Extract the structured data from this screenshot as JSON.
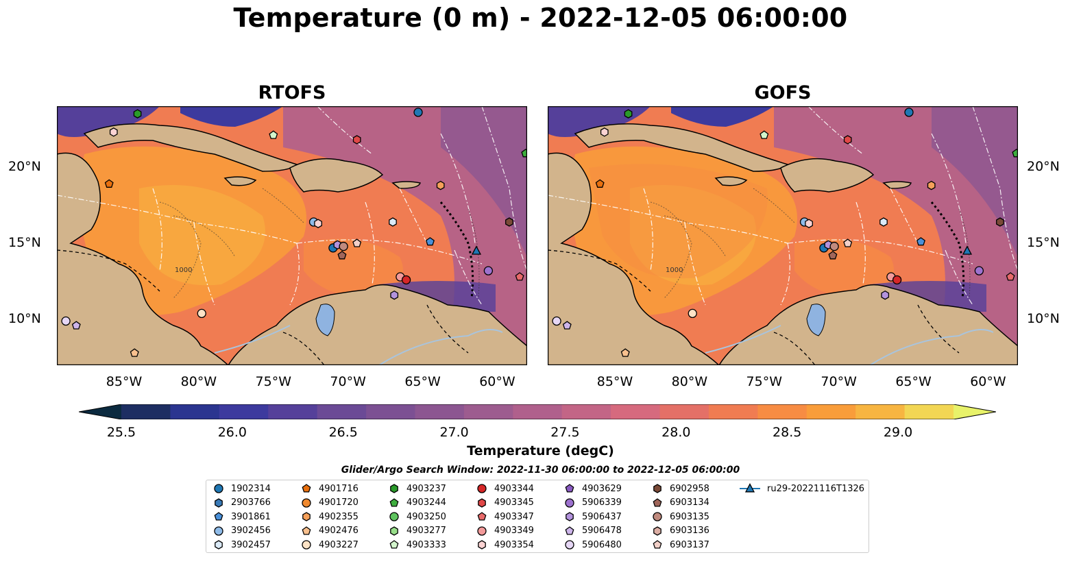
{
  "title": "Temperature (0 m) - 2022-12-05 06:00:00",
  "panels": [
    {
      "title": "RTOFS"
    },
    {
      "title": "GOFS"
    }
  ],
  "axes": {
    "xticks": [
      "85°W",
      "80°W",
      "75°W",
      "70°W",
      "65°W",
      "60°W"
    ],
    "yticks": [
      "20°N",
      "15°N",
      "10°N"
    ],
    "lon_range": [
      -89.5,
      -58
    ],
    "lat_range": [
      7,
      24
    ],
    "xtick_values": [
      -85,
      -80,
      -75,
      -70,
      -65,
      -60
    ],
    "ytick_values": [
      20,
      15,
      10
    ]
  },
  "colorbar": {
    "label": "Temperature (degC)",
    "ticks": [
      "25.5",
      "26.0",
      "26.5",
      "27.0",
      "27.5",
      "28.0",
      "28.5",
      "29.0"
    ],
    "tick_values": [
      25.5,
      26.0,
      26.5,
      27.0,
      27.5,
      28.0,
      28.5,
      29.0
    ],
    "range": [
      25.5,
      29.25
    ],
    "step": 0.25,
    "colors": [
      "#0b2a3f",
      "#1d2e62",
      "#2b3590",
      "#3d3a9e",
      "#55409a",
      "#6b4a96",
      "#7c5093",
      "#8c5691",
      "#9d5c8f",
      "#b0608c",
      "#c36586",
      "#d66a7e",
      "#e47067",
      "#f07c52",
      "#f78c43",
      "#f99d3a",
      "#f7b541",
      "#f2d654",
      "#e8f26a"
    ]
  },
  "contour_labels": [
    "1000"
  ],
  "legend": {
    "title": "Glider/Argo Search Window: 2022-11-30 06:00:00 to 2022-12-05 06:00:00",
    "entries": [
      {
        "label": "1902314",
        "marker": "circle",
        "color": "#1f77b4"
      },
      {
        "label": "2903766",
        "marker": "hexagon",
        "color": "#3a7bb8"
      },
      {
        "label": "3901861",
        "marker": "pentagon",
        "color": "#4a90d9"
      },
      {
        "label": "3902456",
        "marker": "circle",
        "color": "#8fbbe8"
      },
      {
        "label": "3902457",
        "marker": "hexagon",
        "color": "#dbeaf7"
      },
      {
        "label": "4901716",
        "marker": "pentagon",
        "color": "#e8700f"
      },
      {
        "label": "4901720",
        "marker": "circle",
        "color": "#f0892e"
      },
      {
        "label": "4902355",
        "marker": "hexagon",
        "color": "#f5a05a"
      },
      {
        "label": "4902476",
        "marker": "pentagon",
        "color": "#f8c08e"
      },
      {
        "label": "4903227",
        "marker": "circle",
        "color": "#fde3c6"
      },
      {
        "label": "4903237",
        "marker": "hexagon",
        "color": "#2a9a2a"
      },
      {
        "label": "4903244",
        "marker": "pentagon",
        "color": "#3fae3f"
      },
      {
        "label": "4903250",
        "marker": "circle",
        "color": "#5fc45f"
      },
      {
        "label": "4903277",
        "marker": "hexagon",
        "color": "#98df8a"
      },
      {
        "label": "4903333",
        "marker": "pentagon",
        "color": "#d3f5cc"
      },
      {
        "label": "4903344",
        "marker": "circle",
        "color": "#d62728"
      },
      {
        "label": "4903345",
        "marker": "hexagon",
        "color": "#e04848"
      },
      {
        "label": "4903347",
        "marker": "pentagon",
        "color": "#e86a6a"
      },
      {
        "label": "4903349",
        "marker": "circle",
        "color": "#f29a9a"
      },
      {
        "label": "4903354",
        "marker": "hexagon",
        "color": "#fbd3d3"
      },
      {
        "label": "4903629",
        "marker": "pentagon",
        "color": "#8a5bc2"
      },
      {
        "label": "5906339",
        "marker": "circle",
        "color": "#9d72cf"
      },
      {
        "label": "5906437",
        "marker": "hexagon",
        "color": "#b393dd"
      },
      {
        "label": "5906478",
        "marker": "pentagon",
        "color": "#cdb5ea"
      },
      {
        "label": "5906480",
        "marker": "circle",
        "color": "#e6d7f5"
      },
      {
        "label": "6902958",
        "marker": "hexagon",
        "color": "#7a4a38"
      },
      {
        "label": "6903134",
        "marker": "pentagon",
        "color": "#a0665a"
      },
      {
        "label": "6903135",
        "marker": "circle",
        "color": "#c08a7e"
      },
      {
        "label": "6903136",
        "marker": "hexagon",
        "color": "#dcaea4"
      },
      {
        "label": "6903137",
        "marker": "pentagon",
        "color": "#f2d0c8"
      },
      {
        "label": "ru29-20221116T1326",
        "marker": "triangle-line",
        "color": "#1f77b4"
      }
    ]
  },
  "floats": [
    {
      "lon": -84.1,
      "lat": 23.5,
      "marker": "hexagon",
      "color": "#2a9a2a"
    },
    {
      "lon": -85.7,
      "lat": 22.3,
      "marker": "hexagon",
      "color": "#fbd3d3"
    },
    {
      "lon": -86.0,
      "lat": 18.9,
      "marker": "pentagon",
      "color": "#e8700f"
    },
    {
      "lon": -75.0,
      "lat": 22.1,
      "marker": "pentagon",
      "color": "#d3f5cc"
    },
    {
      "lon": -69.4,
      "lat": 21.8,
      "marker": "hexagon",
      "color": "#e04848"
    },
    {
      "lon": -65.3,
      "lat": 23.6,
      "marker": "circle",
      "color": "#1f77b4"
    },
    {
      "lon": -58.1,
      "lat": 20.9,
      "marker": "pentagon",
      "color": "#3fae3f"
    },
    {
      "lon": -63.8,
      "lat": 18.8,
      "marker": "hexagon",
      "color": "#f5a05a"
    },
    {
      "lon": -72.3,
      "lat": 16.4,
      "marker": "circle",
      "color": "#8fbbe8"
    },
    {
      "lon": -72.0,
      "lat": 16.3,
      "marker": "hexagon",
      "color": "#fbd3d3"
    },
    {
      "lon": -67.0,
      "lat": 16.4,
      "marker": "hexagon",
      "color": "#dbeaf7"
    },
    {
      "lon": -64.5,
      "lat": 15.1,
      "marker": "pentagon",
      "color": "#4a90d9"
    },
    {
      "lon": -59.2,
      "lat": 16.4,
      "marker": "hexagon",
      "color": "#7a4a38"
    },
    {
      "lon": -71.0,
      "lat": 14.7,
      "marker": "circle",
      "color": "#1f77b4"
    },
    {
      "lon": -70.7,
      "lat": 14.9,
      "marker": "hexagon",
      "color": "#b393dd"
    },
    {
      "lon": -70.3,
      "lat": 14.8,
      "marker": "circle",
      "color": "#c08a7e"
    },
    {
      "lon": -69.4,
      "lat": 15.0,
      "marker": "pentagon",
      "color": "#f2d0c8"
    },
    {
      "lon": -70.4,
      "lat": 14.2,
      "marker": "pentagon",
      "color": "#a0665a"
    },
    {
      "lon": -66.5,
      "lat": 12.8,
      "marker": "circle",
      "color": "#f29a9a"
    },
    {
      "lon": -66.1,
      "lat": 12.6,
      "marker": "circle",
      "color": "#d62728"
    },
    {
      "lon": -66.9,
      "lat": 11.6,
      "marker": "hexagon",
      "color": "#b393dd"
    },
    {
      "lon": -60.6,
      "lat": 13.2,
      "marker": "circle",
      "color": "#9d72cf"
    },
    {
      "lon": -58.5,
      "lat": 12.8,
      "marker": "pentagon",
      "color": "#e86a6a"
    },
    {
      "lon": -79.8,
      "lat": 10.4,
      "marker": "circle",
      "color": "#fde3c6"
    },
    {
      "lon": -88.9,
      "lat": 9.9,
      "marker": "circle",
      "color": "#e6d7f5"
    },
    {
      "lon": -88.2,
      "lat": 9.6,
      "marker": "pentagon",
      "color": "#cdb5ea"
    },
    {
      "lon": -84.3,
      "lat": 7.8,
      "marker": "pentagon",
      "color": "#f8c08e"
    },
    {
      "lon": -61.4,
      "lat": 14.5,
      "marker": "triangle",
      "color": "#1f77b4"
    }
  ]
}
